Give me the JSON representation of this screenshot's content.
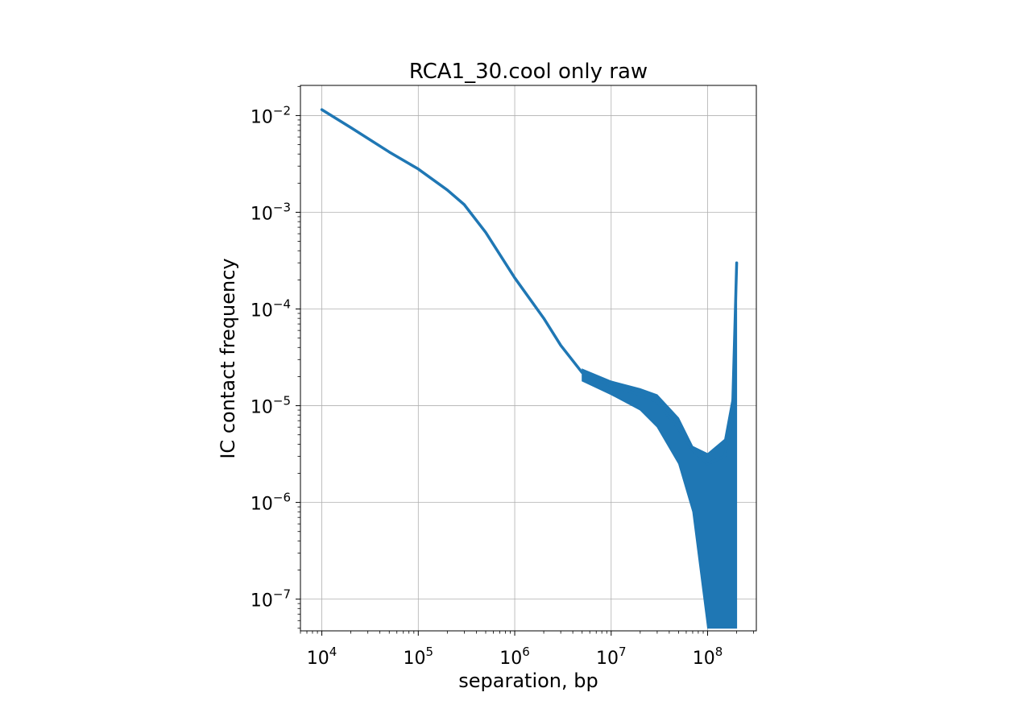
{
  "chart_data": {
    "type": "line",
    "title": "RCA1_30.cool only raw",
    "xlabel": "separation, bp",
    "ylabel": "IC contact frequency",
    "xscale": "log",
    "yscale": "log",
    "xlim": [
      6000,
      320000000
    ],
    "ylim": [
      4.7e-08,
      0.0205
    ],
    "grid": true,
    "color": "#1f77b4",
    "xticks": [
      {
        "base": "10",
        "exp": "4",
        "value": 10000
      },
      {
        "base": "10",
        "exp": "5",
        "value": 100000
      },
      {
        "base": "10",
        "exp": "6",
        "value": 1000000
      },
      {
        "base": "10",
        "exp": "7",
        "value": 10000000
      },
      {
        "base": "10",
        "exp": "8",
        "value": 100000000
      }
    ],
    "yticks": [
      {
        "base": "10",
        "exp": "−2",
        "value": 0.01
      },
      {
        "base": "10",
        "exp": "−3",
        "value": 0.001
      },
      {
        "base": "10",
        "exp": "−4",
        "value": 0.0001
      },
      {
        "base": "10",
        "exp": "−5",
        "value": 1e-05
      },
      {
        "base": "10",
        "exp": "−6",
        "value": 1e-06
      },
      {
        "base": "10",
        "exp": "−7",
        "value": 1e-07
      }
    ],
    "series": [
      {
        "x": [
          10000,
          20000,
          50000,
          100000,
          200000,
          300000,
          500000,
          1000000,
          2000000,
          3000000,
          5000000,
          10000000,
          20000000,
          30000000,
          50000000,
          70000000,
          100000000,
          150000000,
          180000000,
          200000000
        ],
        "y": [
          0.0115,
          0.0075,
          0.0042,
          0.0028,
          0.0017,
          0.0012,
          0.00062,
          0.00021,
          8e-05,
          4.2e-05,
          2.2e-05,
          1.6e-05,
          1.3e-05,
          1.1e-05,
          5.8e-06,
          3.5e-06,
          2.5e-06,
          3e-06,
          7e-06,
          0.0003
        ],
        "noise_band": {
          "x": [
            5000000,
            10000000,
            20000000,
            30000000,
            50000000,
            70000000,
            100000000,
            150000000,
            180000000,
            200000000
          ],
          "y_low": [
            1.8e-05,
            1.3e-05,
            9e-06,
            6e-06,
            2.5e-06,
            8e-07,
            5e-08,
            5e-08,
            5e-08,
            5e-08
          ],
          "y_high": [
            2.4e-05,
            1.8e-05,
            1.5e-05,
            1.3e-05,
            7.5e-06,
            3.8e-06,
            3.2e-06,
            4.5e-06,
            1.2e-05,
            0.0003
          ]
        }
      }
    ]
  }
}
